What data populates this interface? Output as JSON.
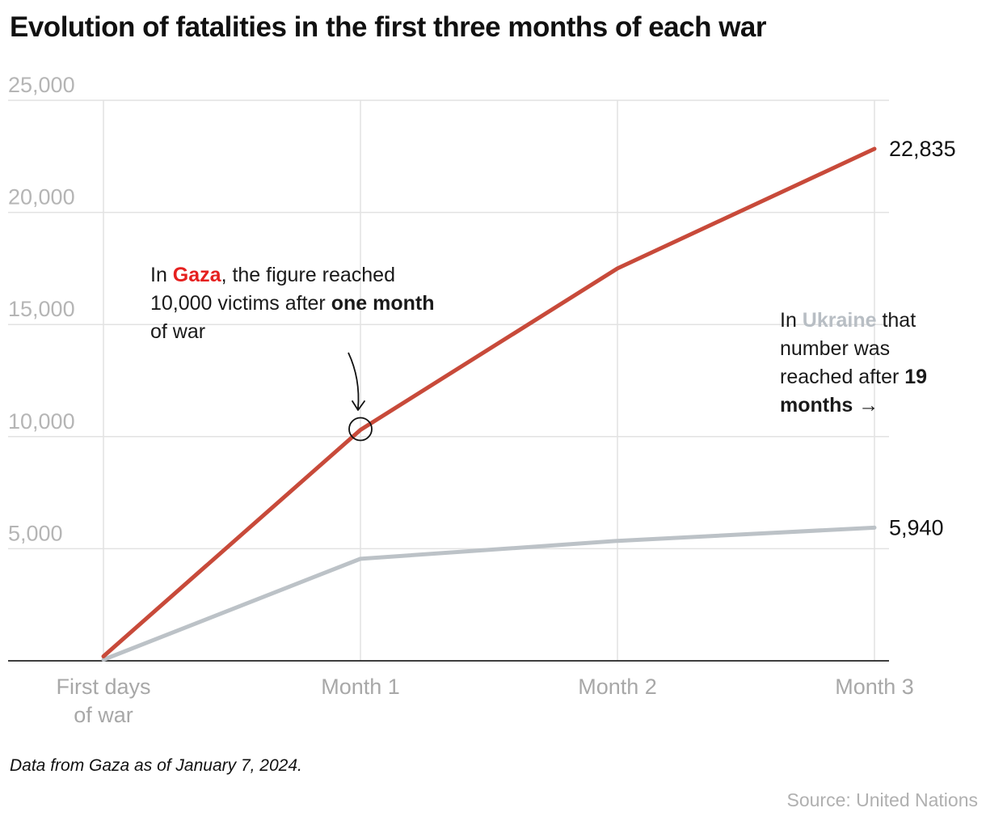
{
  "chart_data": {
    "type": "line",
    "title": "Evolution of fatalities in the first three months of each war",
    "categories": [
      "First days of war",
      "Month 1",
      "Month 2",
      "Month 3"
    ],
    "category_lines": [
      [
        "First days",
        "of war"
      ],
      [
        "Month 1"
      ],
      [
        "Month 2"
      ],
      [
        "Month 3"
      ]
    ],
    "series": [
      {
        "name": "Gaza",
        "color": "#c84a3a",
        "values": [
          200,
          10300,
          17500,
          22835
        ],
        "end_label": "22,835"
      },
      {
        "name": "Ukraine",
        "color": "#bcc2c7",
        "values": [
          50,
          4550,
          5350,
          5940
        ],
        "end_label": "5,940"
      }
    ],
    "ylim": [
      0,
      25000
    ],
    "yticks": [
      {
        "value": 25000,
        "label": "25,000"
      },
      {
        "value": 20000,
        "label": "20,000"
      },
      {
        "value": 15000,
        "label": "15,000"
      },
      {
        "value": 10000,
        "label": "10,000"
      },
      {
        "value": 5000,
        "label": "5,000"
      }
    ],
    "grid": true,
    "highlight_point": {
      "series": "Gaza",
      "category_index": 1
    }
  },
  "annotations": {
    "gaza": {
      "pre": "In ",
      "highlight": "Gaza",
      "mid": ", the figure reached",
      "line2": "10,000 victims after ",
      "bold": "one month",
      "line3": "of war",
      "highlight_color": "#e5201f"
    },
    "ukraine": {
      "pre": "In ",
      "highlight": "Ukraine",
      "mid": " that",
      "line2": "number was",
      "line3": "reached after ",
      "bold1": "19",
      "bold2": "months →",
      "highlight_color": "#b8bec4"
    }
  },
  "footer": {
    "note": "Data from Gaza as of January 7, 2024.",
    "source": "Source: United Nations"
  }
}
